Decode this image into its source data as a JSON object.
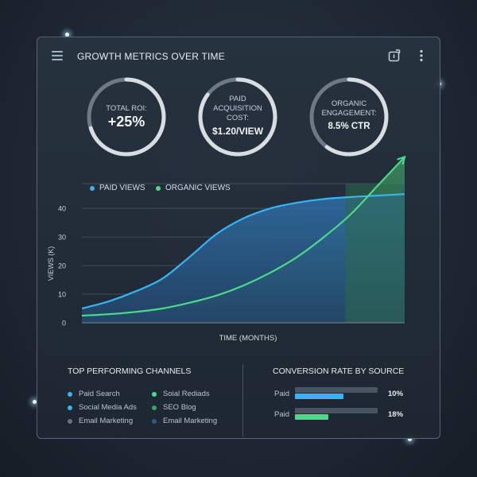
{
  "header": {
    "title": "GROWTH METRICS OVER TIME",
    "menu_icon": "hamburger-menu-icon",
    "export_icon": "export-icon",
    "more_icon": "more-vertical-icon"
  },
  "kpis": [
    {
      "label": "TOTAL ROI:",
      "value": "+25%",
      "progress": 0.7
    },
    {
      "label": "PAID ACQUISITION COST:",
      "value": "$1.20/VIEW",
      "progress": 0.85
    },
    {
      "label": "ORGANIC ENGAGEMENT:",
      "value": "8.5% CTR",
      "progress": 0.6
    }
  ],
  "colors": {
    "paid": "#3ab3f2",
    "organic": "#4dd98a",
    "gray": "#6c7580",
    "navy": "#2b5d86",
    "ring_track": "#6f7985",
    "ring_fill": "#d7dde3"
  },
  "chart_data": {
    "type": "area",
    "series": [
      {
        "name": "PAID VIEWS",
        "values": [
          5.0,
          7.5,
          11.0,
          15.5,
          23.0,
          31.0,
          36.5,
          40.0,
          42.0,
          43.3,
          44.0,
          44.5,
          45.0
        ]
      },
      {
        "name": "ORGANIC VIEWS",
        "values": [
          2.5,
          3.0,
          3.8,
          5.0,
          7.0,
          9.5,
          13.0,
          17.5,
          23.0,
          30.0,
          38.0,
          48.0,
          58.0
        ]
      }
    ],
    "x": [
      0,
      1,
      2,
      3,
      4,
      5,
      6,
      7,
      8,
      9,
      10,
      11,
      12
    ],
    "xlabel": "TIME (MONTHS)",
    "ylabel": "VIEWS (K)",
    "yticks": [
      0,
      10,
      20,
      30,
      40
    ],
    "ylim": [
      0,
      47
    ],
    "highlight_start_x": 9.8,
    "grid": true,
    "legend": "top-left"
  },
  "channels": {
    "title": "TOP PERFORMING CHANNELS",
    "items": [
      {
        "label": "Paid Search",
        "color": "#3ab3f2"
      },
      {
        "label": "Social Media Ads",
        "color": "#3ab3f2"
      },
      {
        "label": "Email Marketing",
        "color": "#6c7580"
      },
      {
        "label": "Soial Rediads",
        "color": "#4dd98a"
      },
      {
        "label": "SEO Blog",
        "color": "#3aa56b"
      },
      {
        "label": "Email Marketing",
        "color": "#2b5d86"
      }
    ]
  },
  "conversion": {
    "title": "CONVERSION RATE BY SOURCE",
    "rows": [
      {
        "label": "Paid",
        "pct": "10%",
        "fill": 0.59,
        "color": "#3ab3f2"
      },
      {
        "label": "Paid",
        "pct": "18%",
        "fill": 0.4,
        "color": "#4dd98a"
      }
    ]
  }
}
